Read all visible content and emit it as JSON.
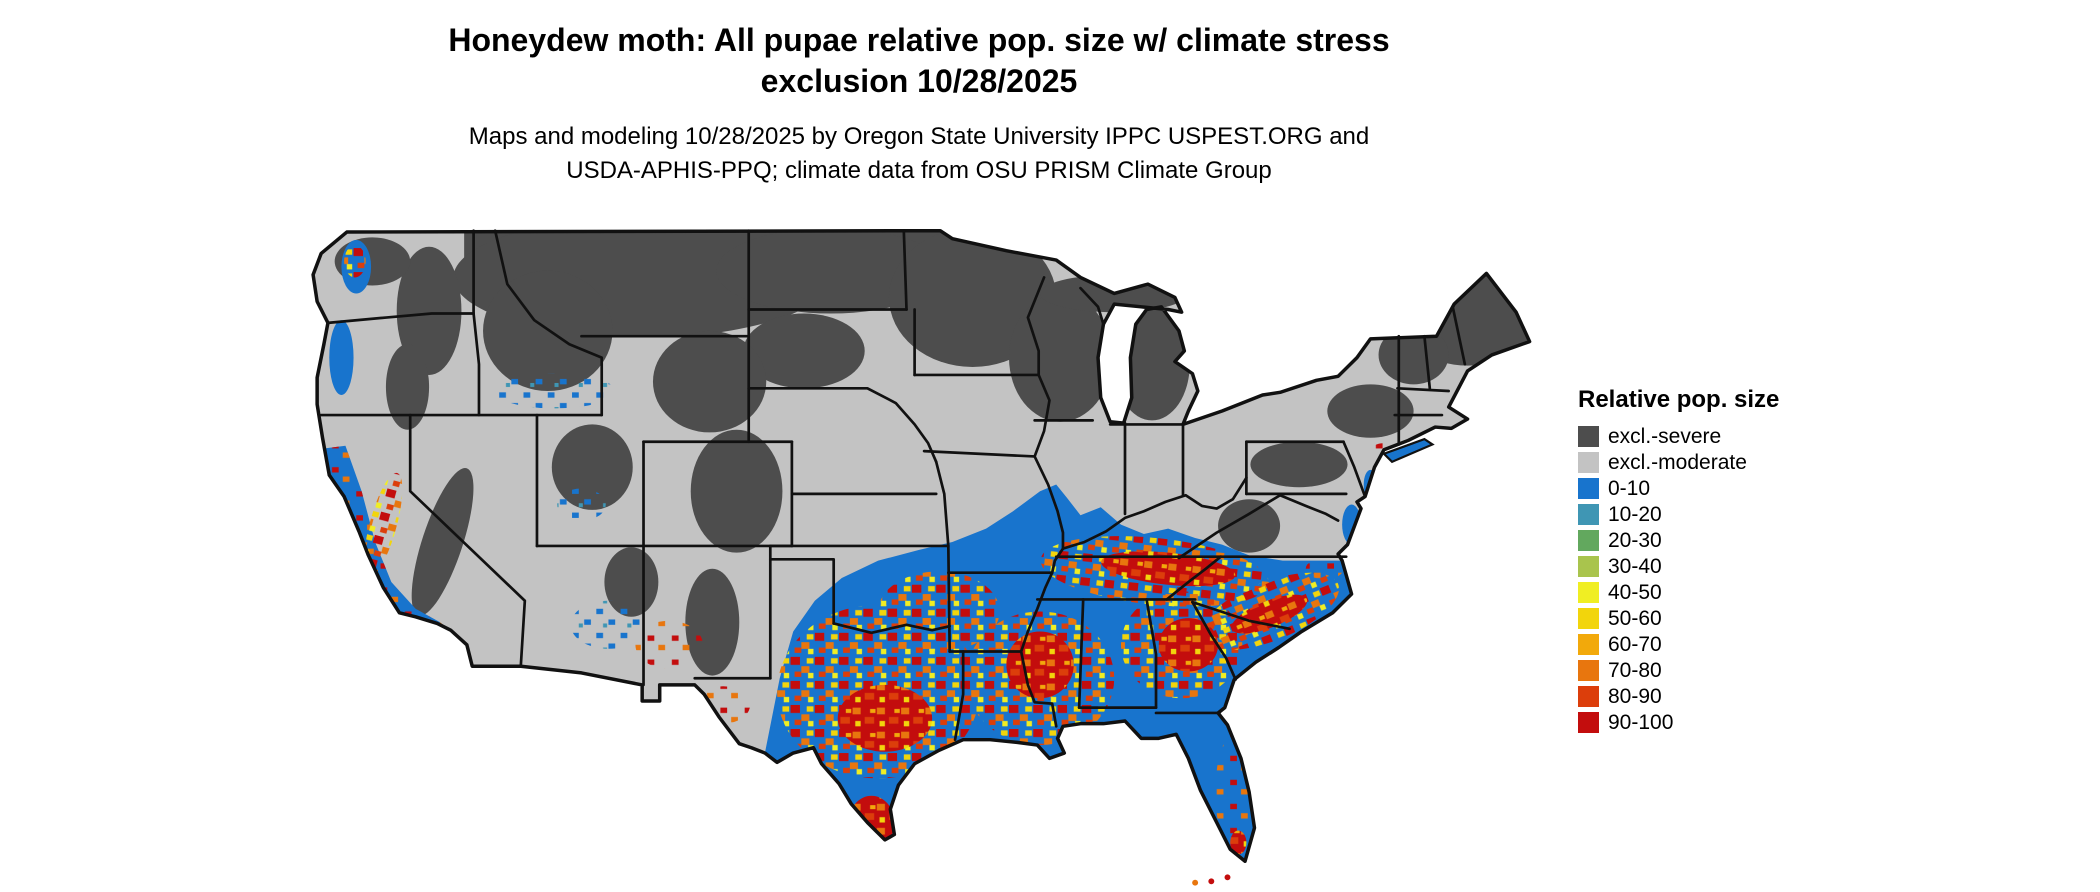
{
  "title": {
    "line1": "Honeydew moth: All pupae relative pop. size w/ climate stress",
    "line2": "exclusion 10/28/2025"
  },
  "subtitle": {
    "line1": "Maps and modeling 10/28/2025 by Oregon State University IPPC USPEST.ORG and",
    "line2": "USDA-APHIS-PPQ; climate data from OSU PRISM Climate Group"
  },
  "legend": {
    "title": "Relative pop. size",
    "items": [
      {
        "label": "excl.-severe",
        "color": "#4d4d4d"
      },
      {
        "label": "excl.-moderate",
        "color": "#c3c3c3"
      },
      {
        "label": "0-10",
        "color": "#1874cd"
      },
      {
        "label": "10-20",
        "color": "#3f96b4"
      },
      {
        "label": "20-30",
        "color": "#62a85e"
      },
      {
        "label": "30-40",
        "color": "#a9c44d"
      },
      {
        "label": "40-50",
        "color": "#f0ee23"
      },
      {
        "label": "50-60",
        "color": "#f2d50c"
      },
      {
        "label": "60-70",
        "color": "#f2a90b"
      },
      {
        "label": "70-80",
        "color": "#e8760e"
      },
      {
        "label": "80-90",
        "color": "#dc3e0b"
      },
      {
        "label": "90-100",
        "color": "#c30d0d"
      }
    ]
  },
  "map": {
    "region": "Continental United States",
    "border_color": "#111111",
    "background_color": "#ffffff"
  }
}
